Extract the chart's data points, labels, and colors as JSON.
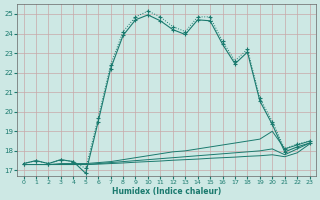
{
  "xlabel": "Humidex (Indice chaleur)",
  "bg_color": "#cde8e4",
  "grid_color": "#b8d8d4",
  "line_color": "#1a7a6e",
  "xlim": [
    -0.5,
    23.5
  ],
  "ylim": [
    16.7,
    25.5
  ],
  "yticks": [
    17,
    18,
    19,
    20,
    21,
    22,
    23,
    24,
    25
  ],
  "xticks": [
    0,
    1,
    2,
    3,
    4,
    5,
    6,
    7,
    8,
    9,
    10,
    11,
    12,
    13,
    14,
    15,
    16,
    17,
    18,
    19,
    20,
    21,
    22,
    23
  ],
  "series_dotted": {
    "x": [
      0,
      1,
      2,
      3,
      4,
      5,
      6,
      7,
      8,
      9,
      10,
      11,
      12,
      13,
      14,
      15,
      16,
      17,
      18,
      19,
      20,
      21,
      22,
      23
    ],
    "y": [
      17.35,
      17.5,
      17.35,
      17.55,
      17.45,
      17.1,
      19.7,
      22.4,
      24.1,
      24.85,
      25.15,
      24.85,
      24.35,
      24.1,
      24.85,
      24.85,
      23.6,
      22.6,
      23.2,
      20.7,
      19.5,
      18.1,
      18.35,
      18.5
    ]
  },
  "series_solid_marker": {
    "x": [
      0,
      1,
      2,
      3,
      4,
      5,
      6,
      7,
      8,
      9,
      10,
      11,
      12,
      13,
      14,
      15,
      16,
      17,
      18,
      19,
      20,
      21,
      22,
      23
    ],
    "y": [
      17.35,
      17.5,
      17.35,
      17.55,
      17.45,
      16.85,
      19.5,
      22.2,
      23.9,
      24.7,
      24.95,
      24.65,
      24.2,
      23.95,
      24.7,
      24.65,
      23.45,
      22.45,
      23.05,
      20.55,
      19.35,
      17.95,
      18.2,
      18.4
    ]
  },
  "flat_lines": [
    {
      "x": [
        0,
        1,
        2,
        3,
        4,
        5,
        6,
        7,
        8,
        9,
        10,
        11,
        12,
        13,
        14,
        15,
        16,
        17,
        18,
        19,
        20,
        21,
        22,
        23
      ],
      "y": [
        17.3,
        17.3,
        17.3,
        17.35,
        17.35,
        17.35,
        17.4,
        17.45,
        17.55,
        17.65,
        17.75,
        17.85,
        17.95,
        18.0,
        18.1,
        18.2,
        18.3,
        18.4,
        18.5,
        18.6,
        19.0,
        18.1,
        18.3,
        18.5
      ]
    },
    {
      "x": [
        0,
        1,
        2,
        3,
        4,
        5,
        6,
        7,
        8,
        9,
        10,
        11,
        12,
        13,
        14,
        15,
        16,
        17,
        18,
        19,
        20,
        21,
        22,
        23
      ],
      "y": [
        17.3,
        17.3,
        17.3,
        17.3,
        17.3,
        17.3,
        17.35,
        17.4,
        17.45,
        17.5,
        17.55,
        17.6,
        17.65,
        17.7,
        17.75,
        17.8,
        17.85,
        17.9,
        17.95,
        18.0,
        18.1,
        17.8,
        18.1,
        18.4
      ]
    },
    {
      "x": [
        0,
        1,
        2,
        3,
        4,
        5,
        6,
        7,
        8,
        9,
        10,
        11,
        12,
        13,
        14,
        15,
        16,
        17,
        18,
        19,
        20,
        21,
        22,
        23
      ],
      "y": [
        17.3,
        17.3,
        17.3,
        17.3,
        17.3,
        17.3,
        17.32,
        17.35,
        17.38,
        17.42,
        17.45,
        17.48,
        17.52,
        17.55,
        17.58,
        17.62,
        17.65,
        17.68,
        17.72,
        17.75,
        17.8,
        17.7,
        17.9,
        18.35
      ]
    }
  ]
}
